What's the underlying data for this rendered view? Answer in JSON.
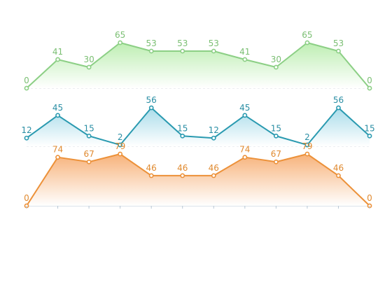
{
  "chart_data": [
    {
      "type": "area",
      "x": [
        0,
        1,
        2,
        3,
        4,
        5,
        6,
        7,
        8,
        9,
        10,
        11
      ],
      "values": [
        0,
        41,
        30,
        65,
        53,
        53,
        53,
        41,
        30,
        65,
        53,
        0
      ],
      "data_labels": [
        "0",
        "41",
        "30",
        "65",
        "53",
        "53",
        "53",
        "41",
        "30",
        "65",
        "53",
        "0"
      ],
      "color": "#8ccf85",
      "label_color": "#7bbf73",
      "gradient": [
        "#bdeeb2",
        "#ffffff"
      ]
    },
    {
      "type": "area",
      "x": [
        0,
        1,
        2,
        3,
        4,
        5,
        6,
        7,
        8,
        9,
        10,
        11
      ],
      "values": [
        12,
        45,
        15,
        2,
        56,
        15,
        12,
        45,
        15,
        2,
        56,
        15
      ],
      "data_labels": [
        "12",
        "45",
        "15",
        "2",
        "56",
        "15",
        "12",
        "45",
        "15",
        "2",
        "56",
        "15"
      ],
      "color": "#2a9ab0",
      "label_color": "#2a8ea4",
      "gradient": [
        "#a9dcea",
        "#ffffff"
      ]
    },
    {
      "type": "area",
      "x": [
        0,
        1,
        2,
        3,
        4,
        5,
        6,
        7,
        8,
        9,
        10,
        11
      ],
      "values": [
        0,
        74,
        67,
        79,
        46,
        46,
        46,
        74,
        67,
        79,
        46,
        0
      ],
      "data_labels": [
        "0",
        "74",
        "67",
        "79",
        "46",
        "46",
        "46",
        "74",
        "67",
        "79",
        "46",
        "0"
      ],
      "color": "#ec9139",
      "label_color": "#e08a30",
      "gradient": [
        "#f7b27a",
        "#ffffff"
      ]
    }
  ],
  "colors": {
    "baseline": "#d8dde3",
    "axis": "#b8c7d4"
  }
}
